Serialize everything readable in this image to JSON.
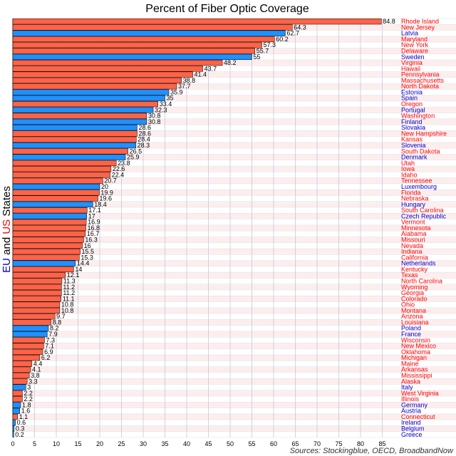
{
  "colors": {
    "us_bar": "#ff6347",
    "eu_bar": "#1e90ff",
    "us_text": "#ff0000",
    "eu_text": "#0000cd",
    "row_stripe": "#fdeeee",
    "row_alt": "#ffffff",
    "grid": "#b0b8d0"
  },
  "ylabel": {
    "part1": "EU",
    "part2": " and ",
    "part3": "US",
    "part4": " States"
  },
  "source_text": "Sources: Stockingblue, OECD, BroadbandNow",
  "chart_data": {
    "type": "bar",
    "orientation": "horizontal",
    "title": "Percent of Fiber Optic Coverage",
    "xlabel": "",
    "ylabel": "EU and US States",
    "xlim": [
      0,
      85
    ],
    "xticks": [
      0,
      5,
      10,
      15,
      20,
      25,
      30,
      35,
      40,
      45,
      50,
      55,
      60,
      65,
      70,
      75,
      80,
      85
    ],
    "grid": true,
    "categories": [
      "Rhode Island",
      "New Jersey",
      "Latvia",
      "Maryland",
      "New York",
      "Delaware",
      "Sweden",
      "Virginia",
      "Hawaii",
      "Pennsylvania",
      "Massachusetts",
      "North Dakota",
      "Estonia",
      "Spain",
      "Oregon",
      "Portugal",
      "Washington",
      "Finland",
      "Slovakia",
      "New Hampshire",
      "Kansas",
      "Slovenia",
      "South Dakota",
      "Denmark",
      "Utah",
      "Iowa",
      "Idaho",
      "Tennessee",
      "Luxembourg",
      "Florida",
      "Nebraska",
      "Hungary",
      "South Carolina",
      "Czech Republic",
      "Vermont",
      "Minnesota",
      "Alabama",
      "Missouri",
      "Nevada",
      "Indiana",
      "California",
      "Netherlands",
      "Kentucky",
      "Texas",
      "North Carolina",
      "Wyoming",
      "Georgia",
      "Colorado",
      "Ohio",
      "Montana",
      "Arizona",
      "Louisiana",
      "Poland",
      "France",
      "Wisconsin",
      "New Mexico",
      "Oklahoma",
      "Michigan",
      "Maine",
      "Arkansas",
      "Mississippi",
      "Alaska",
      "Italy",
      "West Virginia",
      "Illinois",
      "Germany",
      "Austria",
      "Connecticut",
      "Ireland",
      "Belgium",
      "Greece"
    ],
    "values": [
      84.8,
      64.3,
      62.7,
      60.2,
      57.3,
      55.7,
      55,
      48.2,
      43.7,
      41.4,
      38.8,
      37.7,
      35.9,
      35,
      33.4,
      32.3,
      30.8,
      30.8,
      28.6,
      28.6,
      28.4,
      28.3,
      26.5,
      25.9,
      23.8,
      22.6,
      22.4,
      20.7,
      20,
      19.9,
      19.6,
      18.4,
      17.1,
      17,
      16.9,
      16.8,
      16.7,
      16.3,
      16,
      15.5,
      15.3,
      14.4,
      14,
      12.1,
      11.3,
      11.2,
      11.2,
      11.1,
      10.8,
      10.8,
      9.7,
      8.8,
      8.2,
      7.9,
      7.3,
      7.1,
      6.9,
      6.2,
      4.4,
      4.1,
      3.8,
      3.3,
      3,
      2.2,
      2.2,
      1.8,
      1.6,
      1.1,
      0.6,
      0.3,
      0.2
    ],
    "labels": [
      "84.8",
      "64.3",
      "62.7",
      "60.2",
      "57.3",
      "55.7",
      "55",
      "48.2",
      "43.7",
      "41.4",
      "38.8",
      "37.7",
      "35.9",
      "35",
      "33.4",
      "32.3",
      "30.8",
      "30.8",
      "28.6",
      "28.6",
      "28.4",
      "28.3",
      "26.5",
      "25.9",
      "23.8",
      "22.6",
      "22.4",
      "20.7",
      "20",
      "19.9",
      "19.6",
      "18.4",
      "17.1",
      "17",
      "16.9",
      "16.8",
      "16.7",
      "16.3",
      "16",
      "15.5",
      "15.3",
      "14.4",
      "14",
      "12.1",
      "11.3",
      "11.2",
      "11.2",
      "11.1",
      "10.8",
      "10.8",
      "9.7",
      "8.8",
      "8.2",
      "7.9",
      "7.3",
      "7.1",
      "6.9",
      "6.2",
      "4.4",
      "4.1",
      "3.8",
      "3.3",
      "3",
      "2.2",
      "2.2",
      "1.8",
      "1.6",
      "1.1",
      "0.6",
      "0.3",
      "0.2"
    ],
    "group": [
      "US",
      "US",
      "EU",
      "US",
      "US",
      "US",
      "EU",
      "US",
      "US",
      "US",
      "US",
      "US",
      "EU",
      "EU",
      "US",
      "EU",
      "US",
      "EU",
      "EU",
      "US",
      "US",
      "EU",
      "US",
      "EU",
      "US",
      "US",
      "US",
      "US",
      "EU",
      "US",
      "US",
      "EU",
      "US",
      "EU",
      "US",
      "US",
      "US",
      "US",
      "US",
      "US",
      "US",
      "EU",
      "US",
      "US",
      "US",
      "US",
      "US",
      "US",
      "US",
      "US",
      "US",
      "US",
      "EU",
      "EU",
      "US",
      "US",
      "US",
      "US",
      "US",
      "US",
      "US",
      "US",
      "EU",
      "US",
      "US",
      "EU",
      "EU",
      "US",
      "EU",
      "EU",
      "EU"
    ]
  }
}
